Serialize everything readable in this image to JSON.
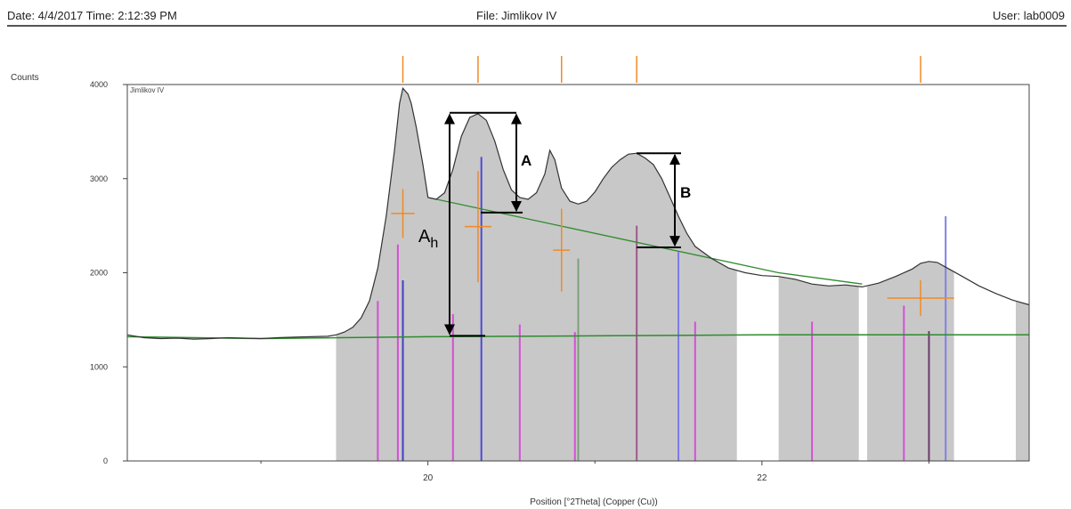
{
  "header": {
    "date_time": "Date: 4/4/2017 Time: 2:12:39 PM",
    "file": "File: Jimlikov IV",
    "user": "User: lab0009"
  },
  "chart_data": {
    "type": "line",
    "ylabel": "Counts",
    "xlabel": "Position [°2Theta] (Copper (Cu))",
    "series_label": "Jimlikov IV",
    "xlim": [
      18.2,
      23.6
    ],
    "ylim": [
      0,
      4000
    ],
    "x_ticks": [
      20,
      22
    ],
    "y_ticks": [
      0,
      1000,
      2000,
      3000,
      4000
    ],
    "pattern": [
      [
        18.2,
        1340
      ],
      [
        18.3,
        1310
      ],
      [
        18.4,
        1300
      ],
      [
        18.5,
        1305
      ],
      [
        18.6,
        1295
      ],
      [
        18.7,
        1300
      ],
      [
        18.8,
        1310
      ],
      [
        18.9,
        1305
      ],
      [
        19.0,
        1300
      ],
      [
        19.1,
        1310
      ],
      [
        19.2,
        1315
      ],
      [
        19.3,
        1320
      ],
      [
        19.4,
        1325
      ],
      [
        19.45,
        1340
      ],
      [
        19.5,
        1370
      ],
      [
        19.55,
        1420
      ],
      [
        19.6,
        1520
      ],
      [
        19.65,
        1700
      ],
      [
        19.7,
        2050
      ],
      [
        19.75,
        2600
      ],
      [
        19.8,
        3300
      ],
      [
        19.83,
        3800
      ],
      [
        19.85,
        3960
      ],
      [
        19.88,
        3900
      ],
      [
        19.9,
        3800
      ],
      [
        19.93,
        3550
      ],
      [
        19.97,
        3150
      ],
      [
        20.0,
        2800
      ],
      [
        20.05,
        2780
      ],
      [
        20.1,
        2850
      ],
      [
        20.15,
        3100
      ],
      [
        20.2,
        3450
      ],
      [
        20.25,
        3650
      ],
      [
        20.3,
        3690
      ],
      [
        20.35,
        3620
      ],
      [
        20.4,
        3400
      ],
      [
        20.45,
        3100
      ],
      [
        20.5,
        2880
      ],
      [
        20.55,
        2800
      ],
      [
        20.6,
        2780
      ],
      [
        20.65,
        2850
      ],
      [
        20.7,
        3050
      ],
      [
        20.73,
        3300
      ],
      [
        20.76,
        3200
      ],
      [
        20.8,
        2900
      ],
      [
        20.85,
        2760
      ],
      [
        20.9,
        2730
      ],
      [
        20.95,
        2760
      ],
      [
        21.0,
        2860
      ],
      [
        21.05,
        3000
      ],
      [
        21.1,
        3120
      ],
      [
        21.15,
        3200
      ],
      [
        21.2,
        3260
      ],
      [
        21.25,
        3270
      ],
      [
        21.3,
        3220
      ],
      [
        21.35,
        3150
      ],
      [
        21.4,
        3000
      ],
      [
        21.45,
        2800
      ],
      [
        21.5,
        2600
      ],
      [
        21.55,
        2420
      ],
      [
        21.6,
        2280
      ],
      [
        21.7,
        2150
      ],
      [
        21.8,
        2050
      ],
      [
        21.9,
        2000
      ],
      [
        22.0,
        1970
      ],
      [
        22.1,
        1960
      ],
      [
        22.2,
        1930
      ],
      [
        22.3,
        1880
      ],
      [
        22.4,
        1860
      ],
      [
        22.5,
        1870
      ],
      [
        22.6,
        1850
      ],
      [
        22.7,
        1890
      ],
      [
        22.8,
        1960
      ],
      [
        22.9,
        2040
      ],
      [
        22.95,
        2100
      ],
      [
        23.0,
        2120
      ],
      [
        23.05,
        2110
      ],
      [
        23.1,
        2060
      ],
      [
        23.2,
        1960
      ],
      [
        23.3,
        1860
      ],
      [
        23.4,
        1780
      ],
      [
        23.5,
        1710
      ],
      [
        23.6,
        1660
      ]
    ],
    "background": [
      [
        18.2,
        1320
      ],
      [
        19.0,
        1300
      ],
      [
        20.0,
        1320
      ],
      [
        21.0,
        1330
      ],
      [
        22.0,
        1340
      ],
      [
        23.6,
        1340
      ]
    ],
    "fit_curve": [
      [
        20.0,
        2800
      ],
      [
        22.1,
        2000
      ],
      [
        22.6,
        1880
      ]
    ],
    "gray_regions": [
      [
        19.45,
        21.85
      ],
      [
        22.1,
        22.58
      ],
      [
        22.63,
        23.15
      ],
      [
        23.52,
        23.6
      ]
    ],
    "orange_ticks_top": [
      19.85,
      20.3,
      20.8,
      21.25,
      22.95
    ],
    "orange_crosses": [
      {
        "x": 19.85,
        "y": 2630,
        "yerr": 520,
        "xerr": 0.07
      },
      {
        "x": 20.3,
        "y": 2490,
        "yerr": 1180,
        "xerr": 0.08
      },
      {
        "x": 20.8,
        "y": 2240,
        "yerr": 880,
        "xerr": 0.05
      },
      {
        "x": 22.95,
        "y": 1730,
        "yerr": 380,
        "xerr": 0.2
      }
    ],
    "sticks": [
      {
        "x": 19.7,
        "h": 1700,
        "color": "#d64fd6"
      },
      {
        "x": 19.82,
        "h": 2300,
        "color": "#d64fd6"
      },
      {
        "x": 19.85,
        "h": 1920,
        "color": "#4040c8"
      },
      {
        "x": 20.15,
        "h": 1560,
        "color": "#d64fd6"
      },
      {
        "x": 20.32,
        "h": 3230,
        "color": "#4a4ad8"
      },
      {
        "x": 20.55,
        "h": 1450,
        "color": "#d64fd6"
      },
      {
        "x": 20.88,
        "h": 1370,
        "color": "#d64fd6"
      },
      {
        "x": 20.9,
        "h": 2150,
        "color": "#7aa07a"
      },
      {
        "x": 21.25,
        "h": 2500,
        "color": "#a05a8c"
      },
      {
        "x": 21.5,
        "h": 2220,
        "color": "#7a7ae8"
      },
      {
        "x": 21.6,
        "h": 1480,
        "color": "#d64fd6"
      },
      {
        "x": 22.3,
        "h": 1480,
        "color": "#d64fd6"
      },
      {
        "x": 22.85,
        "h": 1650,
        "color": "#d64fd6"
      },
      {
        "x": 23.0,
        "h": 1380,
        "color": "#6a3a6a"
      },
      {
        "x": 23.1,
        "h": 2600,
        "color": "#8080e8"
      }
    ],
    "annotations": {
      "A_label": "A",
      "B_label": "B",
      "Ah_main": "A",
      "Ah_sub": "h"
    },
    "colors": {
      "pattern": "#333333",
      "fill": "#c8c8c8",
      "fit": "#2e8b2e",
      "orange": "#f08a24",
      "arrow": "#000000"
    }
  }
}
